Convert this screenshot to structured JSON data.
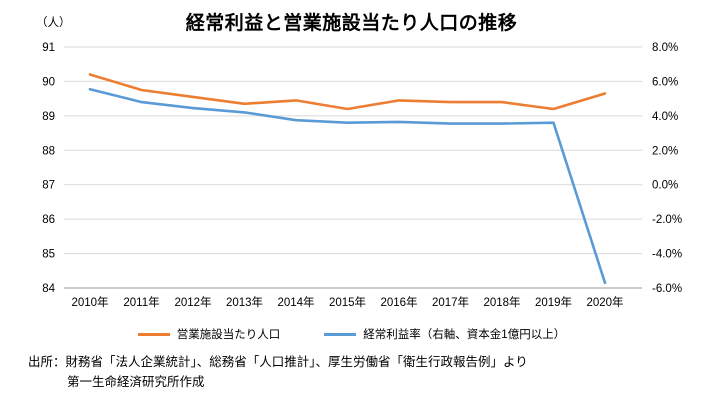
{
  "title": "経常利益と営業施設当たり人口の推移",
  "chart_data": {
    "type": "line",
    "title": "経常利益と営業施設当たり人口の推移",
    "categories": [
      "2010年",
      "2011年",
      "2012年",
      "2013年",
      "2014年",
      "2015年",
      "2016年",
      "2017年",
      "2018年",
      "2019年",
      "2020年"
    ],
    "series": [
      {
        "name": "営業施設当たり人口",
        "key": "population-line",
        "axis": "left",
        "color": "#ED7D31",
        "values": [
          90.2,
          89.75,
          89.55,
          89.35,
          89.45,
          89.2,
          89.45,
          89.4,
          89.4,
          89.2,
          89.65
        ]
      },
      {
        "name": "経常利益率（右軸、資本金1億円以上）",
        "key": "profit-rate-line",
        "axis": "right",
        "color": "#5B9BD5",
        "values": [
          5.55,
          4.8,
          4.45,
          4.2,
          3.75,
          3.6,
          3.65,
          3.55,
          3.55,
          3.6,
          -5.7
        ]
      }
    ],
    "left_axis": {
      "unit": "（人）",
      "min": 84,
      "max": 91,
      "ticks": [
        91,
        90,
        89,
        88,
        87,
        86,
        85,
        84
      ]
    },
    "right_axis": {
      "min": -6,
      "max": 8,
      "ticks": [
        {
          "label": "8.0%",
          "value": 8
        },
        {
          "label": "6.0%",
          "value": 6
        },
        {
          "label": "4.0%",
          "value": 4
        },
        {
          "label": "2.0%",
          "value": 2
        },
        {
          "label": "0.0%",
          "value": 0
        },
        {
          "label": "-2.0%",
          "value": -2
        },
        {
          "label": "-4.0%",
          "value": -4
        },
        {
          "label": "-6.0%",
          "value": -6
        }
      ]
    },
    "grid": true,
    "legend_position": "bottom",
    "grid_color": "#D9D9D9",
    "axis_line_color": "#9B9B9B"
  },
  "source": {
    "line1": "出所：財務省「法人企業統計」、総務省「人口推計」、厚生労働省「衛生行政報告例」より",
    "line2": "第一生命経済研究所作成"
  }
}
